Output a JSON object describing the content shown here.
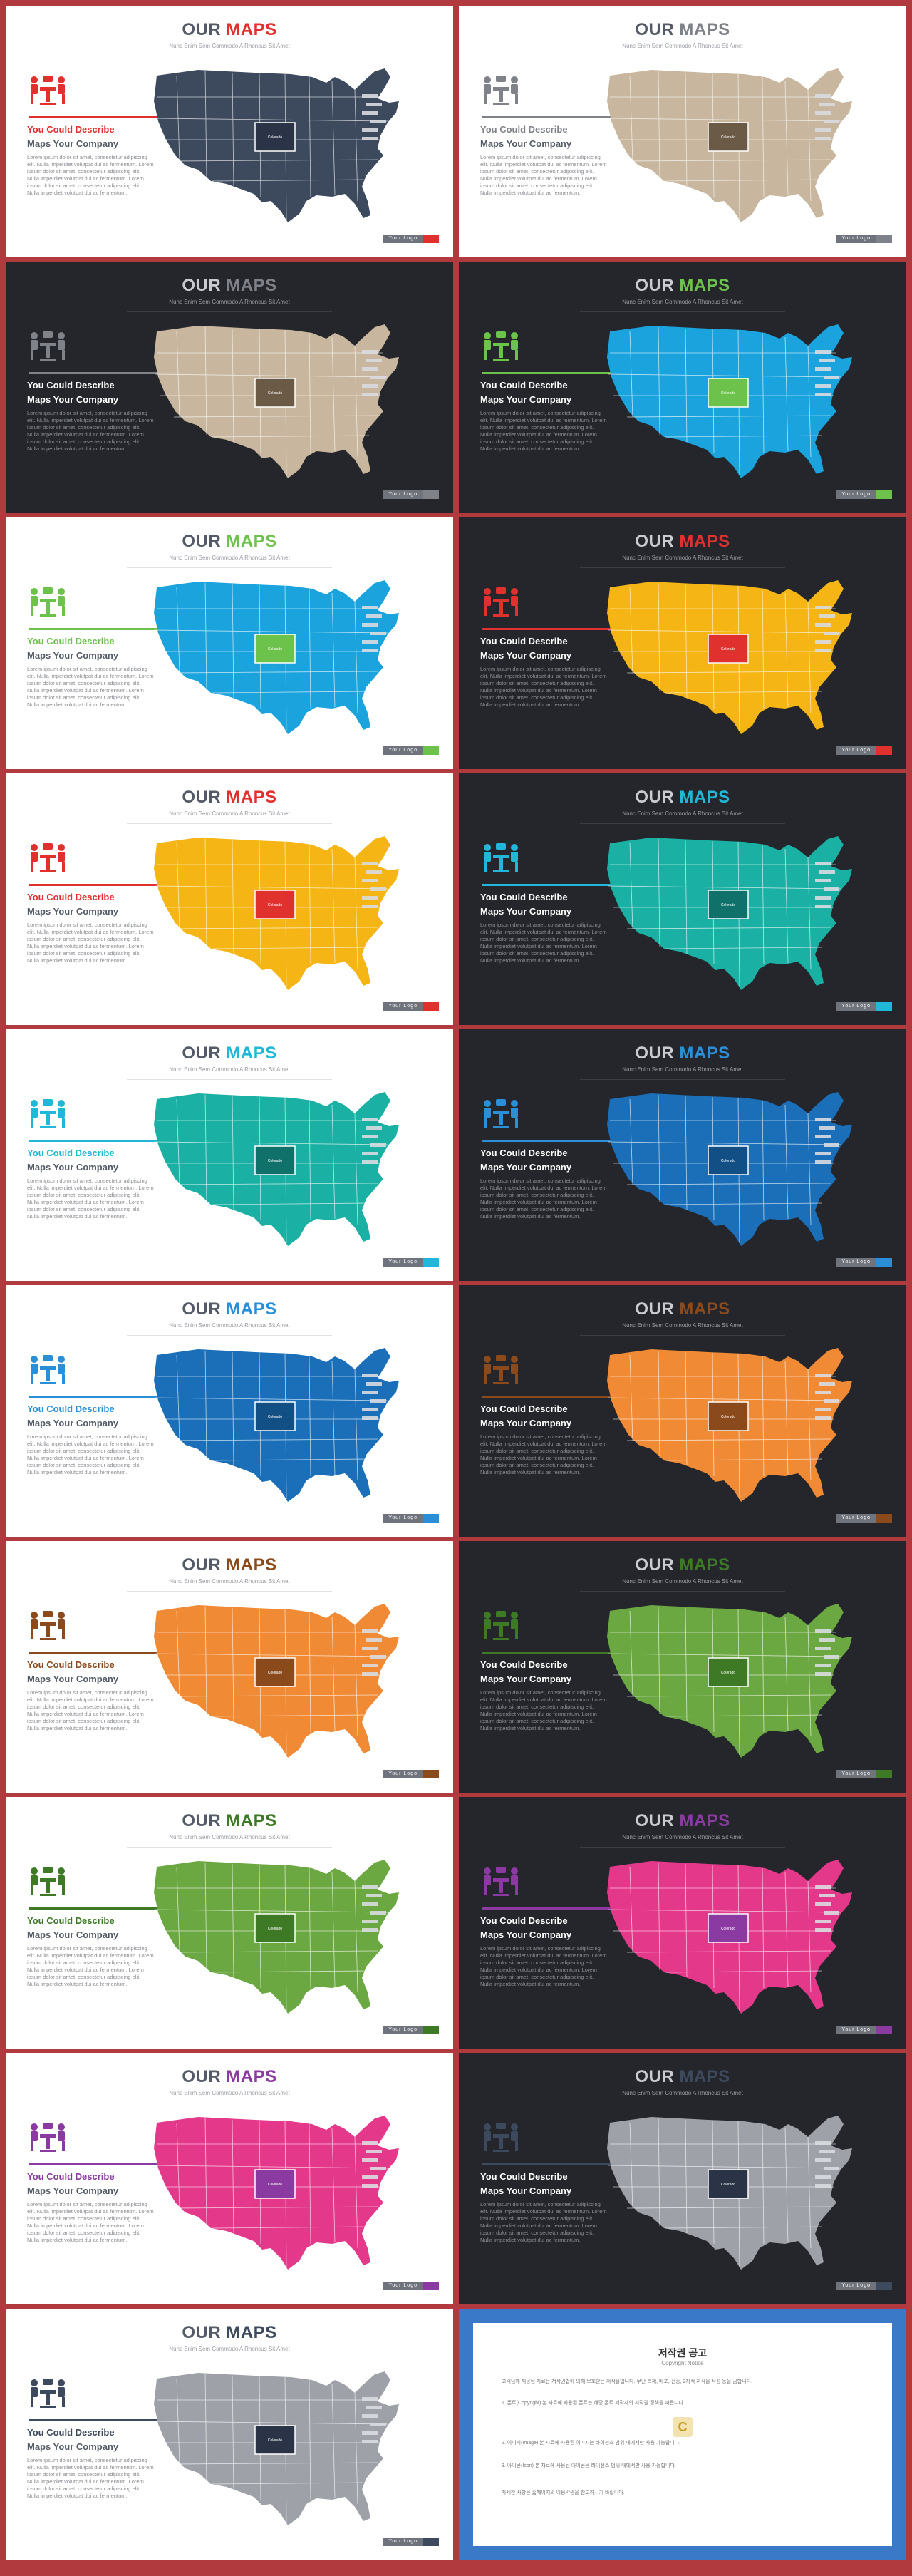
{
  "title_word1": "OUR",
  "title_word2": "MAPS",
  "subtitle": "Nunc Enim Sem Commodo A Rhoncus Sit Amet",
  "heading1": "You Could Describe",
  "heading2": "Maps Your Company",
  "body_text": "Lorem ipsum dolor sit amet, consectetur adipiscing elit. Nulla imperdiet volutpat dui ac fermentum. Lorem ipsum dolor sit amet, consectetur adipiscing elit. Nulla imperdiet volutpat dui ac fermentum. Lorem ipsum dolor sit amet, consectetur adipiscing elit. Nulla imperdiet volutpat dui ac fermentum.",
  "footer_label": "Your Logo",
  "marker_label": "Colorado",
  "slides": [
    {
      "theme": "light",
      "map": "#3d4a5e",
      "accent": "#e0312f",
      "highlight": "#2b3446"
    },
    {
      "theme": "light",
      "map": "#c8b79e",
      "accent": "#7f8288",
      "highlight": "#6b5a46"
    },
    {
      "theme": "dark",
      "map": "#c8b79e",
      "accent": "#7f8288",
      "highlight": "#6b5a46"
    },
    {
      "theme": "dark",
      "map": "#1aa3dc",
      "accent": "#6cc24a",
      "highlight": "#6cc24a"
    },
    {
      "theme": "light",
      "map": "#1aa3dc",
      "accent": "#6cc24a",
      "highlight": "#6cc24a"
    },
    {
      "theme": "dark",
      "map": "#f4b515",
      "accent": "#e0312f",
      "highlight": "#e0312f"
    },
    {
      "theme": "light",
      "map": "#f4b515",
      "accent": "#e0312f",
      "highlight": "#e0312f"
    },
    {
      "theme": "dark",
      "map": "#1ab0a3",
      "accent": "#21b7d8",
      "highlight": "#10706a"
    },
    {
      "theme": "light",
      "map": "#1ab0a3",
      "accent": "#21b7d8",
      "highlight": "#10706a"
    },
    {
      "theme": "dark",
      "map": "#1a6fb8",
      "accent": "#2a8fd6",
      "highlight": "#124f85"
    },
    {
      "theme": "light",
      "map": "#1a6fb8",
      "accent": "#2a8fd6",
      "highlight": "#124f85"
    },
    {
      "theme": "dark",
      "map": "#f08a35",
      "accent": "#8a4a1c",
      "highlight": "#8a4a1c"
    },
    {
      "theme": "light",
      "map": "#f08a35",
      "accent": "#8a4a1c",
      "highlight": "#8a4a1c"
    },
    {
      "theme": "dark",
      "map": "#6ca842",
      "accent": "#3e7a25",
      "highlight": "#3e7a25"
    },
    {
      "theme": "light",
      "map": "#6ca842",
      "accent": "#3e7a25",
      "highlight": "#3e7a25"
    },
    {
      "theme": "dark",
      "map": "#e4388a",
      "accent": "#8a3aa0",
      "highlight": "#8a3aa0"
    },
    {
      "theme": "light",
      "map": "#e4388a",
      "accent": "#8a3aa0",
      "highlight": "#8a3aa0"
    },
    {
      "theme": "dark",
      "map": "#9ea2a8",
      "accent": "#3d4a5e",
      "highlight": "#2b3446"
    },
    {
      "theme": "light",
      "map": "#9ea2a8",
      "accent": "#3d4a5e",
      "highlight": "#2b3446"
    }
  ],
  "notice": {
    "title": "저작권 공고",
    "subtitle": "Copyright Notice",
    "paragraphs": [
      "고객님께 제공된 자료는 저작권법에 의해 보호받는 저작물입니다. 무단 복제, 배포, 전송, 2차적 저작물 작성 등을 금합니다.",
      "1. 폰트(Copyright) 본 자료에 사용된 폰트는 해당 폰트 제작사의 저작권 정책을 따릅니다.",
      "2. 이미지(Image) 본 자료에 사용된 이미지는 라이선스 범위 내에서만 사용 가능합니다.",
      "3. 아이콘(Icon) 본 자료에 사용된 아이콘은 라이선스 범위 내에서만 사용 가능합니다.",
      "자세한 사항은 홈페이지의 이용약관을 참고하시기 바랍니다."
    ]
  }
}
